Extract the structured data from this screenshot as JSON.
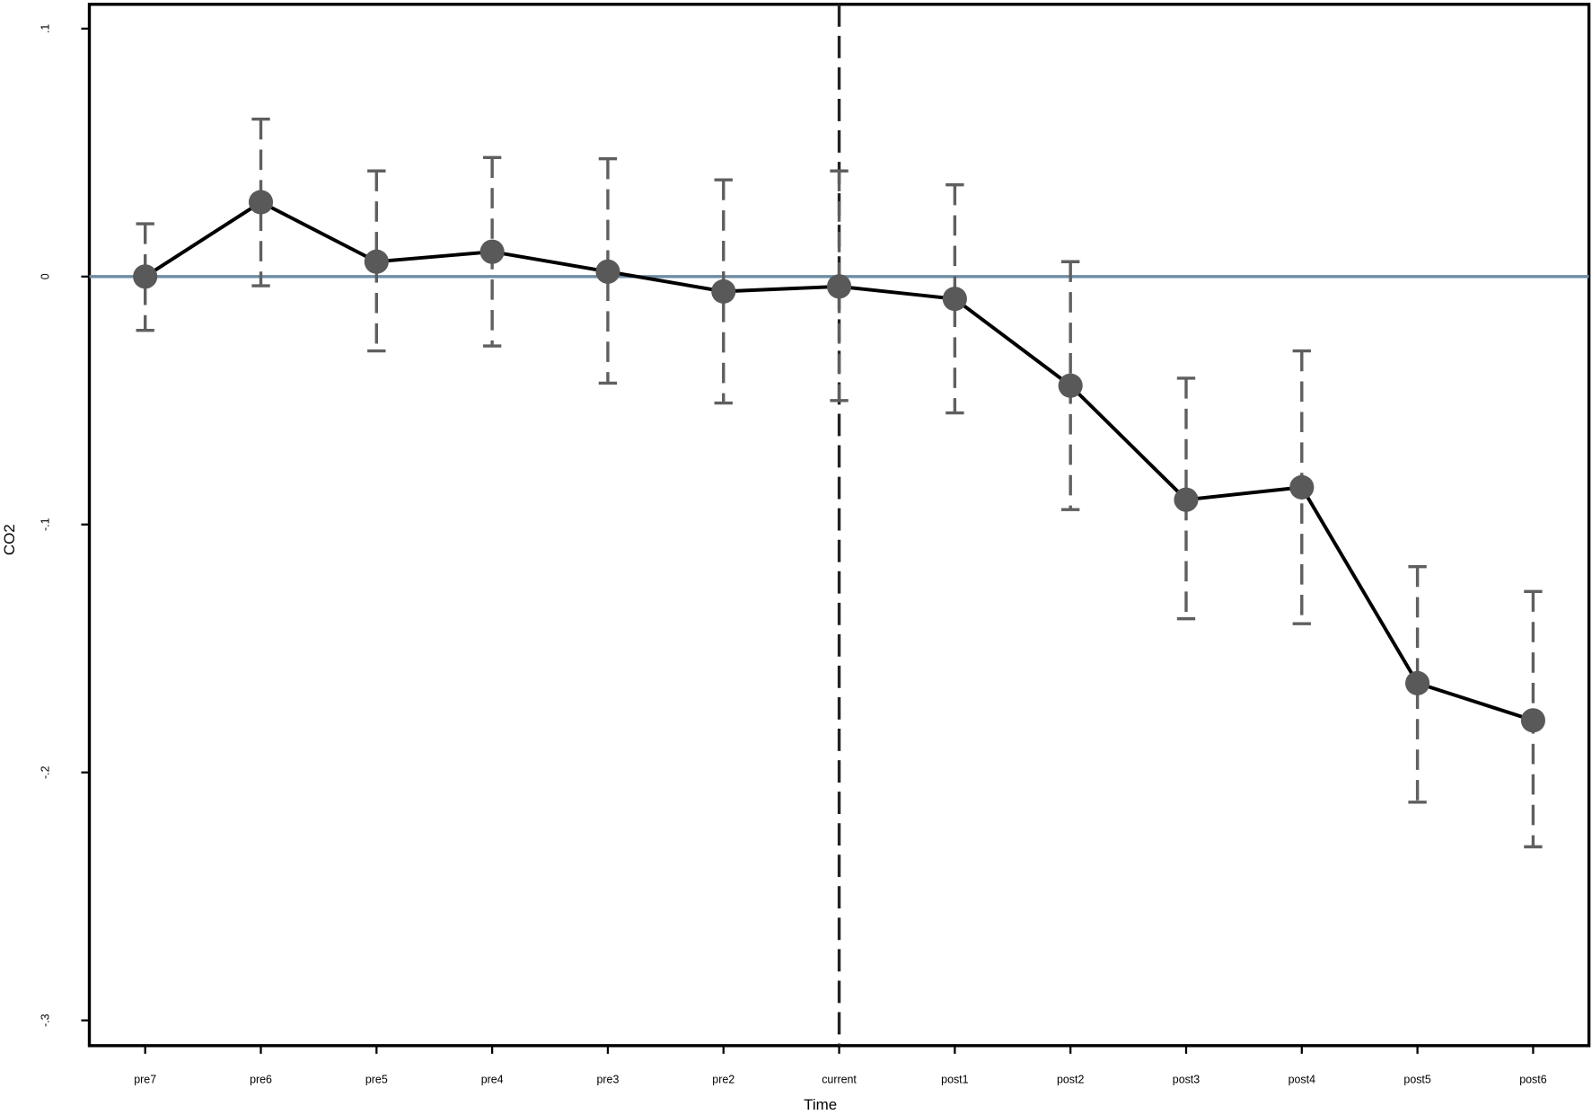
{
  "chart_data": {
    "type": "line",
    "x_label": "Time",
    "y_label": "CO2",
    "categories": [
      "pre7",
      "pre6",
      "pre5",
      "pre4",
      "pre3",
      "pre2",
      "current",
      "post1",
      "post2",
      "post3",
      "post4",
      "post5",
      "post6"
    ],
    "values": [
      0,
      0.03,
      0.006,
      0.01,
      0.002,
      -0.006,
      -0.004,
      -0.009,
      -0.044,
      -0.09,
      -0.085,
      -0.164,
      -0.179
    ],
    "upper": [
      0.0213,
      0.0635,
      0.0426,
      0.048,
      0.0475,
      0.039,
      0.0426,
      0.037,
      0.006,
      -0.041,
      -0.03,
      -0.117,
      -0.127
    ],
    "lower": [
      -0.0217,
      -0.0037,
      -0.03,
      -0.028,
      -0.043,
      -0.051,
      -0.05,
      -0.055,
      -0.094,
      -0.138,
      -0.14,
      -0.212,
      -0.23
    ],
    "color": "#595959",
    "line_color": "#000000",
    "error_color": "#5f5f5f",
    "ylim": [
      -0.3102,
      0.1098
    ],
    "yticks": [
      {
        "value": 0.1,
        "label": ".1"
      },
      0,
      {
        "value": -0.1,
        "label": "-.1"
      },
      {
        "value": -0.2,
        "label": "-.2"
      },
      {
        "value": -0.3,
        "label": "-.3"
      }
    ],
    "hline": 0,
    "hline_color": "#6e8ba3",
    "vline_at": "current"
  }
}
